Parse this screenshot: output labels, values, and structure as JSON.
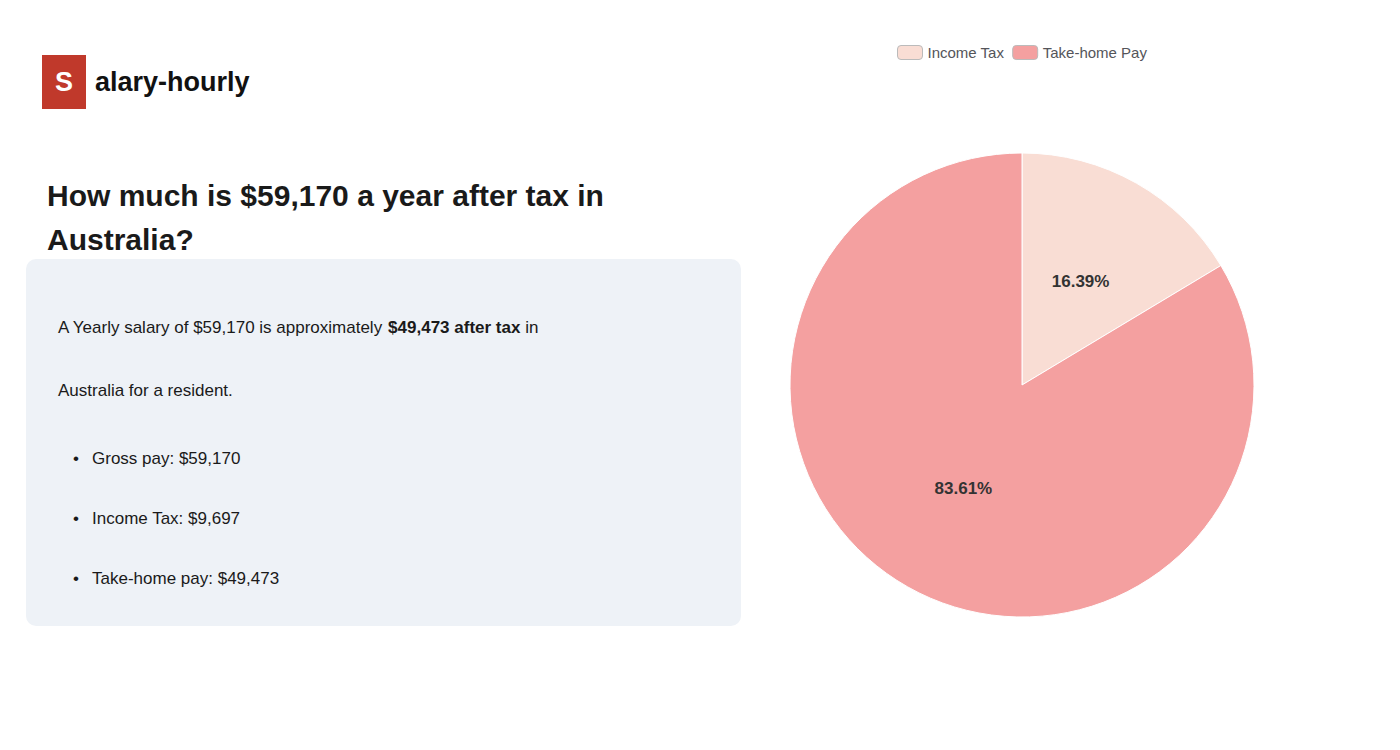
{
  "chart_data": {
    "type": "pie",
    "title": "How much is $59,170 a year after tax in\nAustralia?",
    "categories": [
      "Income Tax",
      "Take-home Pay"
    ],
    "values": [
      16.39,
      83.61
    ],
    "value_labels": [
      "16.39%",
      "83.61%"
    ],
    "data_labels": true,
    "colors": [
      "#f9ddd4",
      "#f4a0a0"
    ],
    "legend": "top",
    "annotations": {
      "logo": [
        {
          "text": "S",
          "color": "#c0392b"
        },
        {
          "text": "alary-hourly"
        }
      ],
      "summary": [
        [
          {
            "text": "A Yearly salary of $59,170 is approximately "
          },
          {
            "text": "$49,473 after tax",
            "color": "#c0392b"
          },
          {
            "text": " in"
          }
        ],
        [
          {
            "text": "Australia for a resident."
          }
        ]
      ],
      "bullet_mark": "•",
      "bullets": [
        "Gross pay: $59,170",
        "Income Tax: $9,697",
        "Take-home pay: $49,473"
      ]
    }
  }
}
